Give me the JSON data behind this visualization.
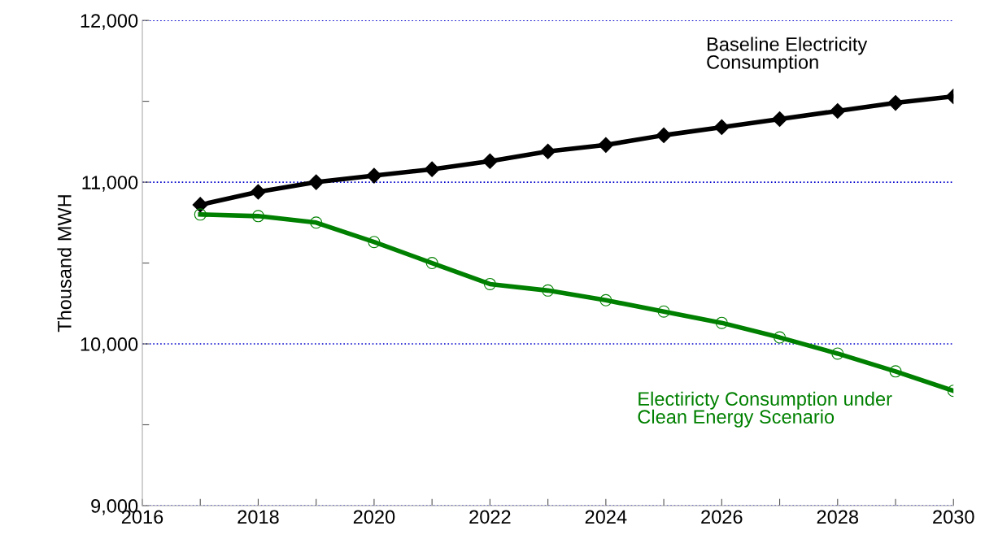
{
  "chart_data": {
    "type": "line",
    "ylabel": "Thousand MWH",
    "x": [
      2017,
      2018,
      2019,
      2020,
      2021,
      2022,
      2023,
      2024,
      2025,
      2026,
      2027,
      2028,
      2029,
      2030
    ],
    "series": [
      {
        "name": "Baseline Electricity\nConsumption",
        "color": "#000000",
        "marker": "diamond",
        "values": [
          10860,
          10940,
          11000,
          11040,
          11080,
          11130,
          11190,
          11230,
          11290,
          11340,
          11390,
          11440,
          11490,
          11530
        ]
      },
      {
        "name": "Electiricty Consumption under\nClean Energy Scenario",
        "color": "#008000",
        "marker": "circle",
        "values": [
          10800,
          10790,
          10750,
          10630,
          10500,
          10370,
          10330,
          10270,
          10200,
          10130,
          10040,
          9940,
          9830,
          9710
        ]
      }
    ],
    "xlim": [
      2016,
      2030
    ],
    "xticks": [
      2016,
      {
        "value": 2017,
        "label": null
      },
      2018,
      {
        "value": 2019,
        "label": null
      },
      2020,
      {
        "value": 2021,
        "label": null
      },
      2022,
      {
        "value": 2023,
        "label": null
      },
      2024,
      {
        "value": 2025,
        "label": null
      },
      2026,
      {
        "value": 2027,
        "label": null
      },
      2028,
      {
        "value": 2029,
        "label": null
      },
      2030
    ],
    "ylim": [
      9000,
      12000
    ],
    "yticks": [
      {
        "value": 9000,
        "label": "9,000"
      },
      {
        "value": 9500,
        "label": null
      },
      {
        "value": 10000,
        "label": "10,000"
      },
      {
        "value": 10500,
        "label": null
      },
      {
        "value": 11000,
        "label": "11,000"
      },
      {
        "value": 11500,
        "label": null
      },
      {
        "value": 12000,
        "label": "12,000"
      }
    ],
    "grid": "y",
    "legend": false,
    "line_style": "solid"
  }
}
